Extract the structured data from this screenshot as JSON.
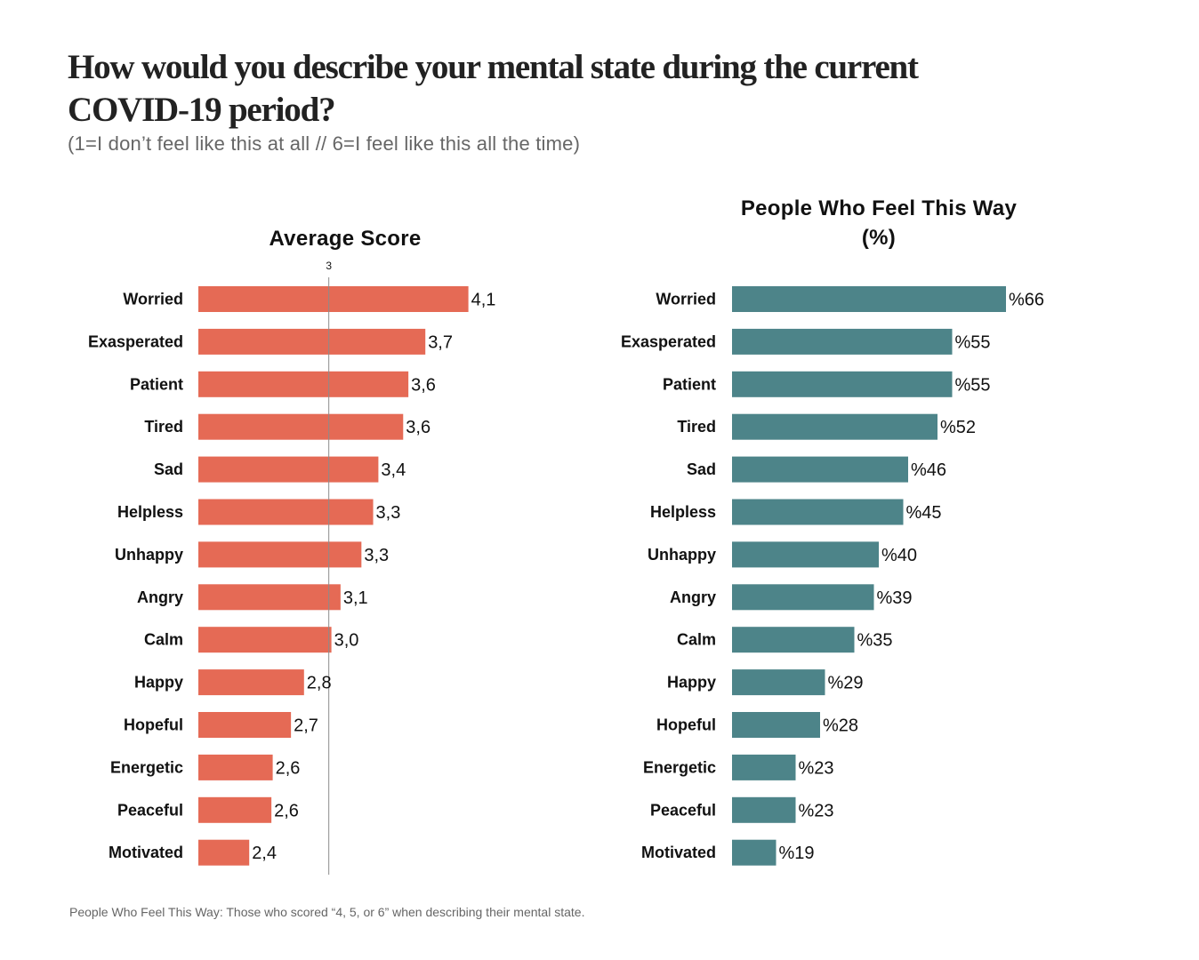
{
  "title": "How would you describe your mental state during the current COVID-19 period?",
  "subtitle": "(1=I don’t feel like this at all // 6=I feel like this all the time)",
  "footnote": "People Who Feel This Way: Those who scored “4, 5, or 6” when describing their mental state.",
  "colors": {
    "left_bar": "#e56a55",
    "right_bar": "#4d8489",
    "ref_line": "#8c8c8c"
  },
  "chart_data": [
    {
      "type": "bar",
      "orientation": "horizontal",
      "title": "Average Score",
      "xlabel": "",
      "ylabel": "",
      "xlim": [
        2,
        4.1
      ],
      "reference_line": {
        "value": 3,
        "label": "3"
      },
      "categories": [
        "Worried",
        "Exasperated",
        "Patient",
        "Tired",
        "Sad",
        "Helpless",
        "Unhappy",
        "Angry",
        "Calm",
        "Happy",
        "Hopeful",
        "Energetic",
        "Peaceful",
        "Motivated"
      ],
      "values": [
        4.07,
        3.74,
        3.61,
        3.57,
        3.38,
        3.34,
        3.25,
        3.09,
        3.02,
        2.81,
        2.71,
        2.57,
        2.56,
        2.39
      ],
      "labels": [
        "4,1",
        "3,7",
        "3,6",
        "3,6",
        "3,4",
        "3,3",
        "3,3",
        "3,1",
        "3,0",
        "2,8",
        "2,7",
        "2,6",
        "2,6",
        "2,4"
      ],
      "grid": false,
      "legend": "none"
    },
    {
      "type": "bar",
      "orientation": "horizontal",
      "title": "People Who Feel This Way (%)",
      "xlabel": "",
      "ylabel": "",
      "xlim": [
        10,
        66
      ],
      "categories": [
        "Worried",
        "Exasperated",
        "Patient",
        "Tired",
        "Sad",
        "Helpless",
        "Unhappy",
        "Angry",
        "Calm",
        "Happy",
        "Hopeful",
        "Energetic",
        "Peaceful",
        "Motivated"
      ],
      "values": [
        66,
        55,
        55,
        52,
        46,
        45,
        40,
        39,
        35,
        29,
        28,
        23,
        23,
        19
      ],
      "labels": [
        "%66",
        "%55",
        "%55",
        "%52",
        "%46",
        "%45",
        "%40",
        "%39",
        "%35",
        "%29",
        "%28",
        "%23",
        "%23",
        "%19"
      ],
      "grid": false,
      "legend": "none"
    }
  ]
}
